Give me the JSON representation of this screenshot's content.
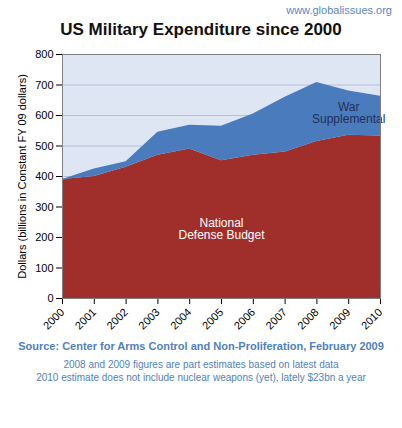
{
  "chart_data": {
    "type": "area",
    "title": "US Military Expenditure since 2000",
    "header": "www.globalissues.org",
    "ylabel": "Dollars (billions in Constant FY 09 dollars)",
    "caption": "Source: Center for Arms Control and Non-Proliferation, February 2009",
    "notes": [
      "2008 and 2009 figures are part estimates based on latest data",
      "2010 estimate does not include nuclear weapons (yet), lately $23bn a year"
    ],
    "x": [
      2000,
      2001,
      2002,
      2003,
      2004,
      2005,
      2006,
      2007,
      2008,
      2009,
      2010
    ],
    "series": [
      {
        "name": "National Defense Budget",
        "color": "#a02f2c",
        "values": [
          390,
          400,
          430,
          470,
          490,
          452,
          470,
          480,
          515,
          535,
          533
        ]
      },
      {
        "name": "War Supplemental",
        "color": "#4a7bbd",
        "values": [
          0,
          25,
          18,
          75,
          78,
          113,
          135,
          180,
          193,
          145,
          130
        ]
      }
    ],
    "stacked": true,
    "grid": true,
    "xlim": [
      2000,
      2010
    ],
    "xticks": [
      2000,
      2001,
      2002,
      2003,
      2004,
      2005,
      2006,
      2007,
      2008,
      2009,
      2010
    ],
    "ylim": [
      0,
      800
    ],
    "yticks": [
      0,
      100,
      200,
      300,
      400,
      500,
      600,
      700,
      800
    ]
  }
}
